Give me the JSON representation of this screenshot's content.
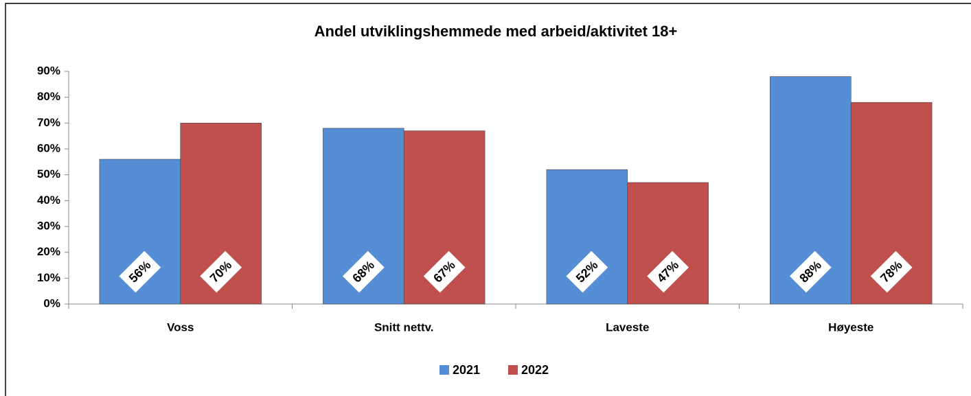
{
  "chart_data": {
    "type": "bar",
    "title": "Andel utviklingshemmede med arbeid/aktivitet 18+",
    "categories": [
      "Voss",
      "Snitt nettv.",
      "Laveste",
      "Høyeste"
    ],
    "series": [
      {
        "name": "2021",
        "color": "#558ed5",
        "values": [
          56,
          68,
          52,
          88
        ],
        "value_labels": [
          "56%",
          "68%",
          "52%",
          "88%"
        ]
      },
      {
        "name": "2022",
        "color": "#c0504d",
        "values": [
          70,
          67,
          47,
          78
        ],
        "value_labels": [
          "70%",
          "67%",
          "47%",
          "78%"
        ]
      }
    ],
    "ylim": [
      0,
      90
    ],
    "yticks": [
      {
        "value": 0,
        "label": "0%"
      },
      {
        "value": 10,
        "label": "10%"
      },
      {
        "value": 20,
        "label": "20%"
      },
      {
        "value": 30,
        "label": "30%"
      },
      {
        "value": 40,
        "label": "40%"
      },
      {
        "value": 50,
        "label": "50%"
      },
      {
        "value": 60,
        "label": "60%"
      },
      {
        "value": 70,
        "label": "70%"
      },
      {
        "value": 80,
        "label": "80%"
      },
      {
        "value": 90,
        "label": "90%"
      }
    ],
    "legend": "bottom"
  }
}
